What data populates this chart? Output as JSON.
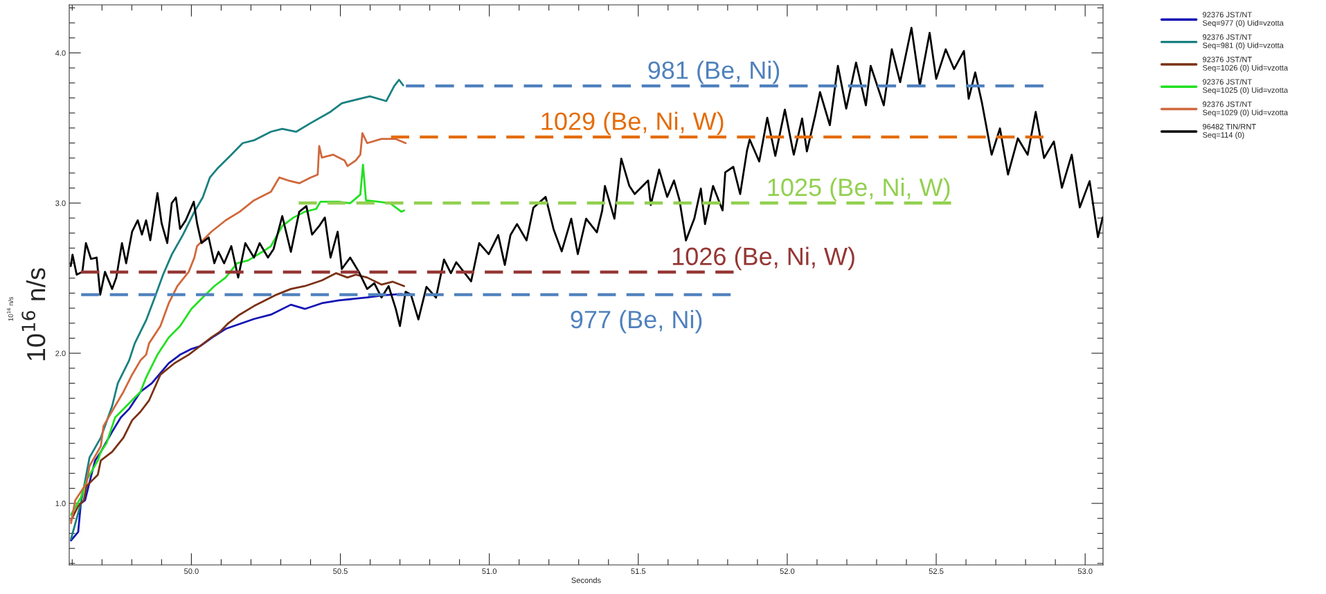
{
  "chart_data": {
    "type": "line",
    "xlabel": "Seconds",
    "ylabel": "10$^{16}$ n/s",
    "xlim": [
      49.59,
      53.06
    ],
    "ylim": [
      0.59,
      4.32
    ],
    "xticks": [
      {
        "value": 50.0,
        "label": "50.0"
      },
      {
        "value": 50.5,
        "label": "50.5"
      },
      {
        "value": 51.0,
        "label": "51.0"
      },
      {
        "value": 51.5,
        "label": "51.5"
      },
      {
        "value": 52.0,
        "label": "52.0"
      },
      {
        "value": 52.5,
        "label": "52.5"
      },
      {
        "value": 53.0,
        "label": "53.0"
      }
    ],
    "yticks": [
      {
        "value": 1.0,
        "label": "1.0"
      },
      {
        "value": 2.0,
        "label": "2.0"
      },
      {
        "value": 3.0,
        "label": "3.0"
      },
      {
        "value": 4.0,
        "label": "4.0"
      }
    ],
    "grid": false,
    "legend": "right",
    "series": [
      {
        "name": "92376 JST/NT\nSeq=977 (0) Uid=vzotta",
        "color": "#1414b4",
        "x": [
          49.596,
          49.62,
          49.629,
          49.643,
          49.667,
          49.677,
          49.696,
          49.734,
          49.763,
          49.791,
          49.829,
          49.867,
          49.924,
          49.962,
          50.0,
          50.029,
          50.077,
          50.115,
          50.21,
          50.267,
          50.334,
          50.381,
          50.438,
          50.495,
          50.59,
          50.648,
          50.705
        ],
        "values": [
          0.753,
          0.81,
          1.0,
          1.02,
          1.21,
          1.286,
          1.343,
          1.477,
          1.572,
          1.629,
          1.743,
          1.8,
          1.933,
          1.99,
          2.028,
          2.047,
          2.114,
          2.162,
          2.228,
          2.257,
          2.323,
          2.295,
          2.333,
          2.352,
          2.371,
          2.386,
          2.394
        ]
      },
      {
        "name": "92376 JST/NT\nSeq=981 (0) Uid=vzotta",
        "color": "#1a8080",
        "x": [
          49.596,
          49.629,
          49.658,
          49.696,
          49.734,
          49.753,
          49.791,
          49.81,
          49.848,
          49.877,
          49.905,
          49.934,
          49.972,
          50.01,
          50.038,
          50.062,
          50.086,
          50.134,
          50.172,
          50.21,
          50.267,
          50.305,
          50.352,
          50.4,
          50.467,
          50.505,
          50.599,
          50.654,
          50.681,
          50.697,
          50.711
        ],
        "values": [
          0.763,
          1.0,
          1.305,
          1.438,
          1.648,
          1.8,
          1.952,
          2.066,
          2.219,
          2.371,
          2.523,
          2.656,
          2.79,
          2.942,
          3.037,
          3.17,
          3.227,
          3.322,
          3.399,
          3.418,
          3.475,
          3.494,
          3.475,
          3.532,
          3.608,
          3.665,
          3.711,
          3.679,
          3.78,
          3.821,
          3.784
        ]
      },
      {
        "name": "92376 JST/NT\nSeq=1026 (0) Uid=vzotta",
        "color": "#7a3014",
        "x": [
          49.596,
          49.62,
          49.639,
          49.648,
          49.686,
          49.696,
          49.734,
          49.772,
          49.801,
          49.829,
          49.858,
          49.896,
          49.943,
          49.991,
          50.029,
          50.067,
          50.096,
          50.124,
          50.162,
          50.21,
          50.248,
          50.286,
          50.334,
          50.381,
          50.438,
          50.486,
          50.524,
          50.552,
          50.59,
          50.638,
          50.676,
          50.714
        ],
        "values": [
          0.887,
          0.982,
          1.02,
          1.115,
          1.191,
          1.286,
          1.343,
          1.438,
          1.553,
          1.61,
          1.686,
          1.857,
          1.933,
          1.99,
          2.047,
          2.105,
          2.143,
          2.2,
          2.257,
          2.314,
          2.352,
          2.39,
          2.428,
          2.447,
          2.485,
          2.533,
          2.504,
          2.523,
          2.504,
          2.457,
          2.476,
          2.447
        ]
      },
      {
        "name": "92376 JST/NT\nSeq=1025 (0) Uid=vzotta",
        "color": "#22e022",
        "x": [
          49.596,
          49.629,
          49.648,
          49.686,
          49.696,
          49.715,
          49.744,
          49.763,
          49.791,
          49.829,
          49.848,
          49.886,
          49.924,
          49.962,
          50.0,
          50.038,
          50.077,
          50.115,
          50.153,
          50.191,
          50.238,
          50.267,
          50.305,
          50.343,
          50.381,
          50.419,
          50.433,
          50.495,
          50.533,
          50.567,
          50.576,
          50.586,
          50.628,
          50.667,
          50.705,
          50.714
        ],
        "values": [
          0.925,
          1.039,
          1.153,
          1.286,
          1.343,
          1.4,
          1.572,
          1.61,
          1.667,
          1.743,
          1.838,
          1.99,
          2.105,
          2.181,
          2.295,
          2.371,
          2.447,
          2.504,
          2.599,
          2.618,
          2.675,
          2.713,
          2.847,
          2.904,
          2.942,
          2.961,
          3.009,
          3.009,
          2.999,
          3.056,
          3.256,
          3.018,
          3.009,
          2.999,
          2.942,
          2.951
        ]
      },
      {
        "name": "92376 JST/NT\nSeq=1029 (0) Uid=vzotta",
        "color": "#d0683c",
        "x": [
          49.596,
          49.61,
          49.648,
          49.658,
          49.696,
          49.705,
          49.744,
          49.772,
          49.801,
          49.829,
          49.848,
          49.858,
          49.896,
          49.924,
          49.953,
          49.991,
          50.01,
          50.019,
          50.067,
          50.115,
          50.162,
          50.21,
          50.267,
          50.295,
          50.324,
          50.362,
          50.4,
          50.424,
          50.429,
          50.438,
          50.476,
          50.514,
          50.524,
          50.552,
          50.567,
          50.574,
          50.59,
          50.638,
          50.686,
          50.719
        ],
        "values": [
          0.868,
          1.02,
          1.134,
          1.248,
          1.381,
          1.515,
          1.648,
          1.743,
          1.857,
          1.952,
          1.99,
          2.066,
          2.181,
          2.333,
          2.447,
          2.542,
          2.637,
          2.713,
          2.809,
          2.885,
          2.942,
          3.018,
          3.075,
          3.17,
          3.151,
          3.132,
          3.17,
          3.189,
          3.38,
          3.303,
          3.322,
          3.284,
          3.246,
          3.284,
          3.322,
          3.465,
          3.399,
          3.427,
          3.427,
          3.399
        ]
      },
      {
        "name": "96482 TIN/RNT\nSeq=114 (0)",
        "color": "#000000",
        "x": [
          49.595,
          49.601,
          49.615,
          49.634,
          49.646,
          49.663,
          49.682,
          49.694,
          49.71,
          49.734,
          49.748,
          49.767,
          49.781,
          49.801,
          49.82,
          49.834,
          49.848,
          49.862,
          49.886,
          49.9,
          49.919,
          49.934,
          49.948,
          49.962,
          49.981,
          50.008,
          50.019,
          50.034,
          50.058,
          50.077,
          50.091,
          50.11,
          50.134,
          50.157,
          50.181,
          50.21,
          50.229,
          50.257,
          50.276,
          50.305,
          50.334,
          50.362,
          50.386,
          50.405,
          50.429,
          50.448,
          50.467,
          50.491,
          50.505,
          50.533,
          50.562,
          50.59,
          50.614,
          50.638,
          50.662,
          50.686,
          50.7,
          50.719,
          50.737,
          50.762,
          50.789,
          50.821,
          50.848,
          50.871,
          50.889,
          50.939,
          50.966,
          50.998,
          51.03,
          51.052,
          51.071,
          51.093,
          51.125,
          51.148,
          51.189,
          51.216,
          51.243,
          51.275,
          51.297,
          51.325,
          51.361,
          51.379,
          51.388,
          51.42,
          51.443,
          51.47,
          51.488,
          51.533,
          51.542,
          51.57,
          51.597,
          51.62,
          51.638,
          51.66,
          51.688,
          51.71,
          51.724,
          51.751,
          51.783,
          51.792,
          51.819,
          51.842,
          51.865,
          51.874,
          51.906,
          51.933,
          51.96,
          51.992,
          52.019,
          52.022,
          52.05,
          52.066,
          52.094,
          52.11,
          52.143,
          52.17,
          52.198,
          52.231,
          52.264,
          52.28,
          52.324,
          52.351,
          52.379,
          52.417,
          52.445,
          52.478,
          52.5,
          52.532,
          52.56,
          52.593,
          52.609,
          52.631,
          52.653,
          52.686,
          52.714,
          52.741,
          52.774,
          52.807,
          52.834,
          52.862,
          52.895,
          52.922,
          52.955,
          52.982,
          53.015,
          53.043,
          53.059
        ],
        "values": [
          2.58,
          2.656,
          2.523,
          2.542,
          2.733,
          2.628,
          2.637,
          2.39,
          2.542,
          2.428,
          2.504,
          2.733,
          2.599,
          2.809,
          2.885,
          2.79,
          2.885,
          2.752,
          3.066,
          2.866,
          2.733,
          2.999,
          3.037,
          2.828,
          2.885,
          3.009,
          2.866,
          2.733,
          2.771,
          2.599,
          2.675,
          2.599,
          2.713,
          2.504,
          2.733,
          2.637,
          2.733,
          2.637,
          2.694,
          2.913,
          2.675,
          2.942,
          2.98,
          2.79,
          2.847,
          2.904,
          2.637,
          2.809,
          2.561,
          2.637,
          2.542,
          2.428,
          2.466,
          2.371,
          2.447,
          2.295,
          2.181,
          2.409,
          2.39,
          2.225,
          2.442,
          2.37,
          2.624,
          2.533,
          2.606,
          2.479,
          2.733,
          2.66,
          2.787,
          2.588,
          2.787,
          2.86,
          2.751,
          2.969,
          3.041,
          2.824,
          2.678,
          2.896,
          2.66,
          2.896,
          2.805,
          2.951,
          3.114,
          2.896,
          3.296,
          3.114,
          3.06,
          3.15,
          2.987,
          3.223,
          3.041,
          3.15,
          3.023,
          2.751,
          2.896,
          3.096,
          2.86,
          3.114,
          2.951,
          3.205,
          3.241,
          3.06,
          3.35,
          3.423,
          3.277,
          3.568,
          3.314,
          3.622,
          3.35,
          3.322,
          3.563,
          3.344,
          3.585,
          3.739,
          3.519,
          3.914,
          3.629,
          3.936,
          3.651,
          3.914,
          3.651,
          4.024,
          3.805,
          4.167,
          3.783,
          4.134,
          3.827,
          4.024,
          3.892,
          4.013,
          3.695,
          3.87,
          3.673,
          3.322,
          3.497,
          3.19,
          3.431,
          3.322,
          3.607,
          3.3,
          3.41,
          3.102,
          3.322,
          2.971,
          3.146,
          2.773,
          2.905
        ]
      },
      {
        "color": "#4f81bd",
        "line_style": "dashed",
        "x": [
          49.63,
          51.81
        ],
        "values": [
          2.39,
          2.39
        ]
      },
      {
        "color": "#953735",
        "line_style": "dashed",
        "x": [
          49.63,
          51.82
        ],
        "values": [
          2.54,
          2.54
        ]
      },
      {
        "color": "#92d050",
        "line_style": "dashed",
        "x": [
          50.36,
          52.55
        ],
        "values": [
          3.0,
          3.0
        ]
      },
      {
        "color": "#e46c0a",
        "line_style": "dashed",
        "x": [
          50.67,
          52.86
        ],
        "values": [
          3.44,
          3.44
        ]
      },
      {
        "color": "#4f81bd",
        "line_style": "dashed",
        "x": [
          50.72,
          52.86
        ],
        "values": [
          3.78,
          3.78
        ]
      }
    ],
    "annotations": [
      {
        "text": "977 (Be, Ni)",
        "x": 51.27,
        "y": 2.39
      },
      {
        "text": "1026 (Be, Ni, W)",
        "x": 51.61,
        "y": 2.54
      },
      {
        "text": "1025 (Be, Ni, W)",
        "x": 51.93,
        "y": 3.0
      },
      {
        "text": "1029 (Be, Ni, W)",
        "x": 51.17,
        "y": 3.44
      },
      {
        "text": "981 (Be, Ni)",
        "x": 51.53,
        "y": 3.78
      },
      "10$^{16}$ n/s"
    ]
  }
}
